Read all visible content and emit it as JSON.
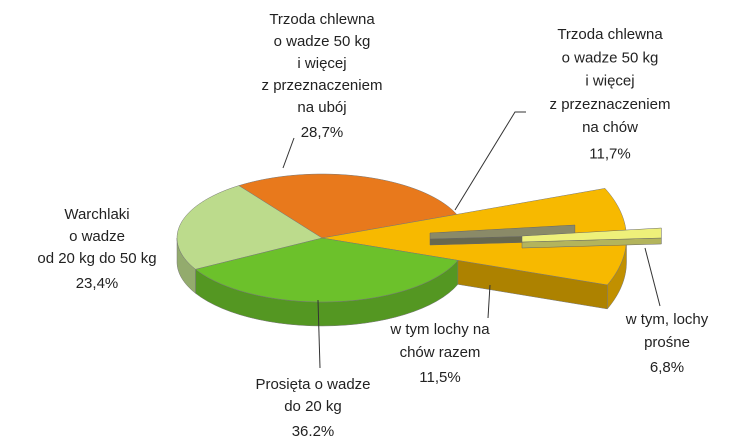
{
  "chart_data": {
    "type": "pie",
    "categories": [
      [
        "Trzoda chlewna",
        "o wadze 50 kg",
        "i więcej",
        "z przeznaczeniem",
        "na ubój"
      ],
      [
        "Trzoda chlewna",
        "o wadze 50 kg",
        "i więcej",
        "z przeznaczeniem",
        "na chów"
      ],
      [
        "Prosięta o wadze",
        "do 20 kg"
      ],
      [
        "Warchlaki",
        "o wadze",
        "od 20 kg do 50 kg"
      ]
    ],
    "values": [
      28.7,
      11.7,
      36.2,
      23.4
    ],
    "value_labels": [
      "28,7%",
      "11,7%",
      "36,2%",
      "23,4%"
    ],
    "colors": [
      "#e8791c",
      "#f7b900",
      "#6cc12b",
      "#bcdb8c"
    ],
    "sub_series": {
      "categories": [
        [
          "w tym lochy na",
          "chów razem"
        ],
        [
          "w tym, lochy",
          "prośne"
        ]
      ],
      "values": [
        11.5,
        6.8
      ],
      "value_labels": [
        "11,5%",
        "6,8%"
      ],
      "colors": [
        "#8a8a68",
        "#eef07a"
      ]
    }
  }
}
